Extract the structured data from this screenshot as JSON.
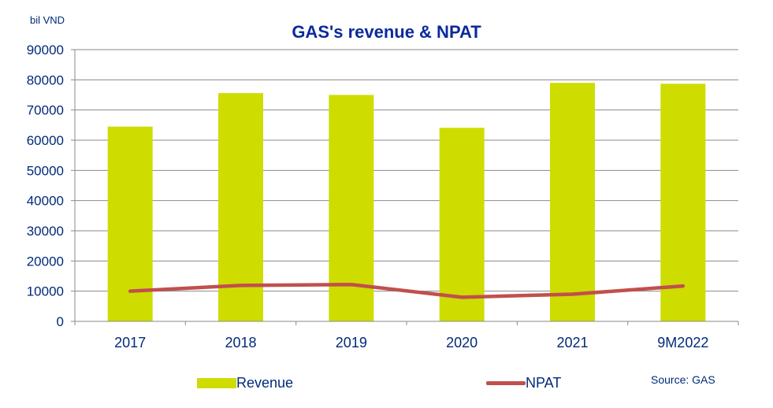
{
  "chart_data": {
    "type": "bar",
    "title": "GAS's revenue & NPAT",
    "unit_label": "bil VND",
    "source": "Source: GAS",
    "categories": [
      "2017",
      "2018",
      "2019",
      "2020",
      "2021",
      "9M2022"
    ],
    "ylim": [
      0,
      90000
    ],
    "yticks": [
      "0",
      "10000",
      "20000",
      "30000",
      "40000",
      "50000",
      "60000",
      "70000",
      "80000",
      "90000"
    ],
    "grid": true,
    "legend_position": "bottom",
    "series": [
      {
        "name": "Revenue",
        "type": "bar",
        "color": "#cfdc00",
        "values": [
          64500,
          75600,
          75000,
          64100,
          79000,
          78700
        ]
      },
      {
        "name": "NPAT",
        "type": "line",
        "color": "#c0504d",
        "values": [
          10000,
          11900,
          12200,
          8000,
          9000,
          11700
        ]
      }
    ]
  }
}
